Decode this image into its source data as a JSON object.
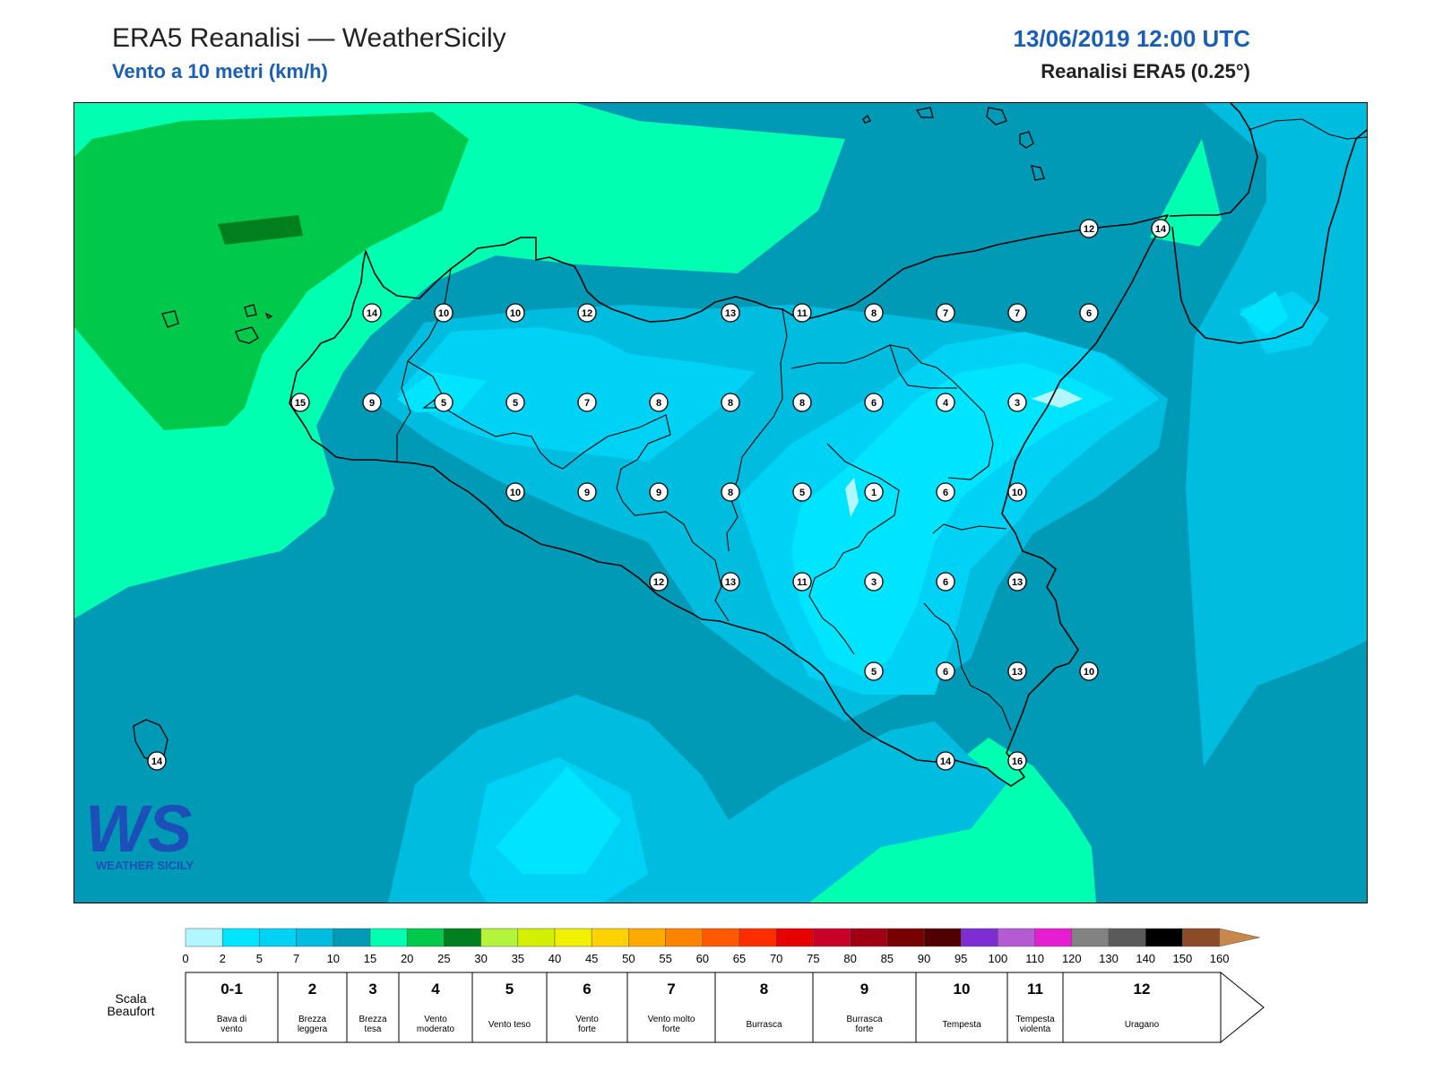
{
  "header": {
    "title": "ERA5 Reanalisi — WeatherSicily",
    "subtitle": "Vento a 10 metri (km/h)",
    "datetime": "13/06/2019 12:00 UTC",
    "source": "Reanalisi ERA5 (0.25°)"
  },
  "logo": {
    "text": "WEATHER SICILY",
    "mark": "WS"
  },
  "stations": [
    {
      "v": "14"
    },
    {
      "v": "10"
    },
    {
      "v": "10"
    },
    {
      "v": "12"
    },
    {
      "v": "13"
    },
    {
      "v": "11"
    },
    {
      "v": "8"
    },
    {
      "v": "7"
    },
    {
      "v": "7"
    },
    {
      "v": "6"
    },
    {
      "v": "15"
    },
    {
      "v": "9"
    },
    {
      "v": "5"
    },
    {
      "v": "5"
    },
    {
      "v": "7"
    },
    {
      "v": "8"
    },
    {
      "v": "8"
    },
    {
      "v": "8"
    },
    {
      "v": "6"
    },
    {
      "v": "4"
    },
    {
      "v": "3"
    },
    {
      "v": "10"
    },
    {
      "v": "9"
    },
    {
      "v": "9"
    },
    {
      "v": "8"
    },
    {
      "v": "5"
    },
    {
      "v": "1"
    },
    {
      "v": "6"
    },
    {
      "v": "10"
    },
    {
      "v": "12"
    },
    {
      "v": "13"
    },
    {
      "v": "11"
    },
    {
      "v": "3"
    },
    {
      "v": "6"
    },
    {
      "v": "13"
    },
    {
      "v": "5"
    },
    {
      "v": "6"
    },
    {
      "v": "13"
    },
    {
      "v": "10"
    },
    {
      "v": "14"
    },
    {
      "v": "16"
    },
    {
      "v": "12"
    },
    {
      "v": "14"
    },
    {
      "v": "14"
    }
  ],
  "colorbar": {
    "labels": [
      "0",
      "2",
      "5",
      "7",
      "10",
      "15",
      "20",
      "25",
      "30",
      "35",
      "40",
      "45",
      "50",
      "55",
      "60",
      "65",
      "70",
      "75",
      "80",
      "85",
      "90",
      "95",
      "100",
      "110",
      "120",
      "130",
      "140",
      "150",
      "160"
    ],
    "colors": [
      "#b2f7ff",
      "#00e5ff",
      "#00d2f5",
      "#00bde0",
      "#009ab7",
      "#00ffb0",
      "#00c84a",
      "#007f1f",
      "#b4f53c",
      "#d2f000",
      "#f0f000",
      "#ffd200",
      "#ffaa00",
      "#ff8200",
      "#ff5a00",
      "#ff2d00",
      "#e60000",
      "#c80028",
      "#a00014",
      "#780000",
      "#500000",
      "#7d2dd2",
      "#b45ad2",
      "#e61ed2",
      "#828282",
      "#5a5a5a",
      "#000000",
      "#8c4b28",
      "#c8874b"
    ]
  },
  "beaufort": {
    "title_line1": "Scala",
    "title_line2": "Beaufort",
    "cells": [
      {
        "num": "0-1",
        "l1": "Bava di",
        "l2": "vento"
      },
      {
        "num": "2",
        "l1": "Brezza",
        "l2": "leggera"
      },
      {
        "num": "3",
        "l1": "Brezza",
        "l2": "tesa"
      },
      {
        "num": "4",
        "l1": "Vento",
        "l2": "moderato"
      },
      {
        "num": "5",
        "l1": "Vento teso",
        "l2": ""
      },
      {
        "num": "6",
        "l1": "Vento",
        "l2": "forte"
      },
      {
        "num": "7",
        "l1": "Vento molto",
        "l2": "forte"
      },
      {
        "num": "8",
        "l1": "Burrasca",
        "l2": ""
      },
      {
        "num": "9",
        "l1": "Burrasca",
        "l2": "forte"
      },
      {
        "num": "10",
        "l1": "Tempesta",
        "l2": ""
      },
      {
        "num": "11",
        "l1": "Tempesta",
        "l2": "violenta"
      },
      {
        "num": "12",
        "l1": "Uragano",
        "l2": ""
      }
    ]
  },
  "colors": {
    "c_2_5": "#00e5ff",
    "c_5_7": "#00d2f5",
    "c_7_10": "#00bde0",
    "c_10_15": "#009ab7",
    "c_15_20": "#00ffb0",
    "c_20_25": "#00c84a",
    "c_25_30": "#007f1f",
    "c_0_2": "#b2f7ff",
    "title_blue": "#1a5fb4"
  }
}
